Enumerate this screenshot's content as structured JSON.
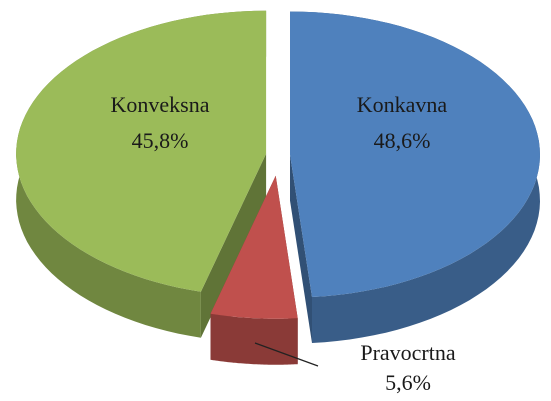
{
  "chart_data": {
    "type": "pie",
    "categories": [
      "Konkavna",
      "Pravocrtna",
      "Konveksna"
    ],
    "values": [
      48.6,
      5.6,
      45.8
    ],
    "value_labels": [
      "48,6%",
      "5,6%",
      "45,8%"
    ],
    "colors": [
      "#4f81bd",
      "#c0504d",
      "#9bbb59"
    ]
  }
}
